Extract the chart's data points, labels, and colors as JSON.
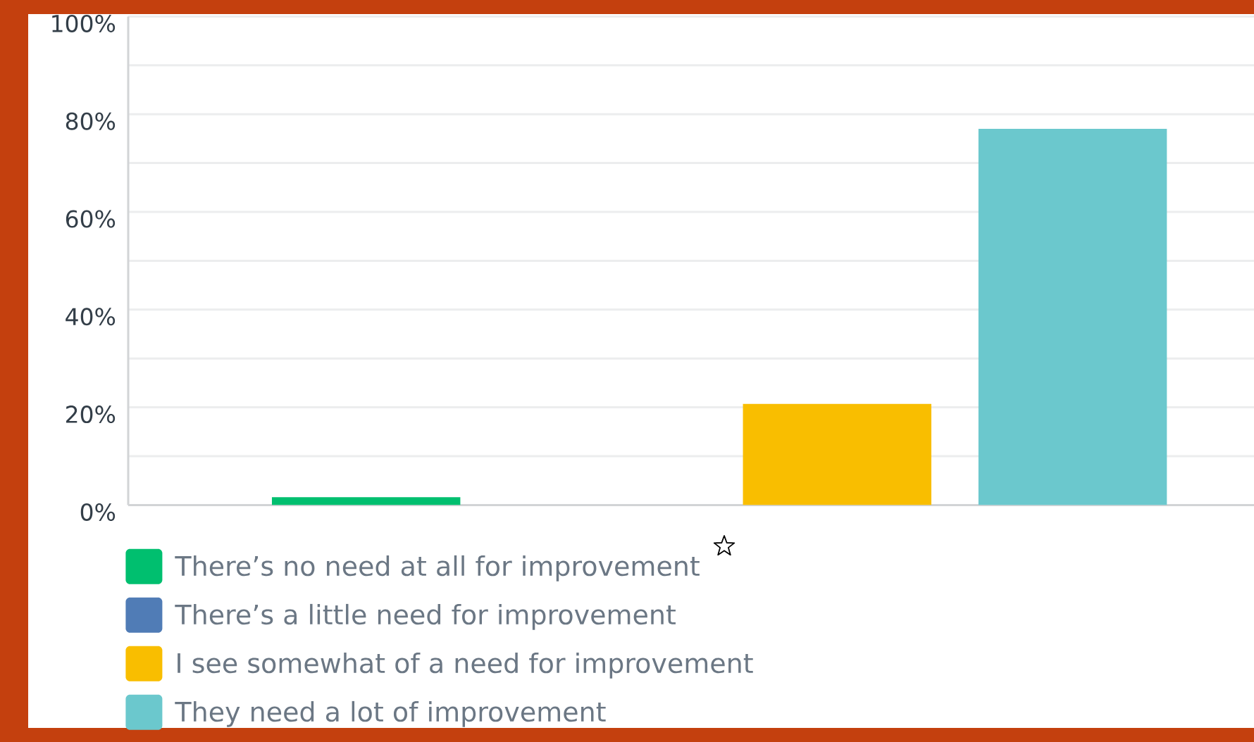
{
  "chart_data": {
    "type": "bar",
    "categories": [
      null,
      null,
      null,
      null
    ],
    "series": [
      {
        "name": "There’s no need at all for improvement",
        "color": "#00bf6f",
        "values": [
          1.6,
          null,
          null,
          null
        ]
      },
      {
        "name": "There’s a little need for improvement",
        "color": "#507cb6",
        "values": [
          null,
          0,
          null,
          null
        ]
      },
      {
        "name": "I see somewhat of a need for improvement",
        "color": "#f9be00",
        "values": [
          null,
          null,
          20.7,
          null
        ]
      },
      {
        "name": "They need a lot of improvement",
        "color": "#6bc8cd",
        "values": [
          null,
          null,
          null,
          77.0
        ]
      }
    ],
    "ylim": [
      0,
      100
    ],
    "yticks": [
      {
        "value": 0,
        "label": "0%"
      },
      {
        "value": 10,
        "label": null
      },
      {
        "value": 20,
        "label": "20%"
      },
      {
        "value": 30,
        "label": null
      },
      {
        "value": 40,
        "label": "40%"
      },
      {
        "value": 50,
        "label": null
      },
      {
        "value": 60,
        "label": "60%"
      },
      {
        "value": 70,
        "label": null
      },
      {
        "value": 80,
        "label": "80%"
      },
      {
        "value": 90,
        "label": null
      },
      {
        "value": 100,
        "label": "100%"
      }
    ],
    "grid": "y",
    "legend": "bottom left",
    "tick_labels": "y"
  }
}
